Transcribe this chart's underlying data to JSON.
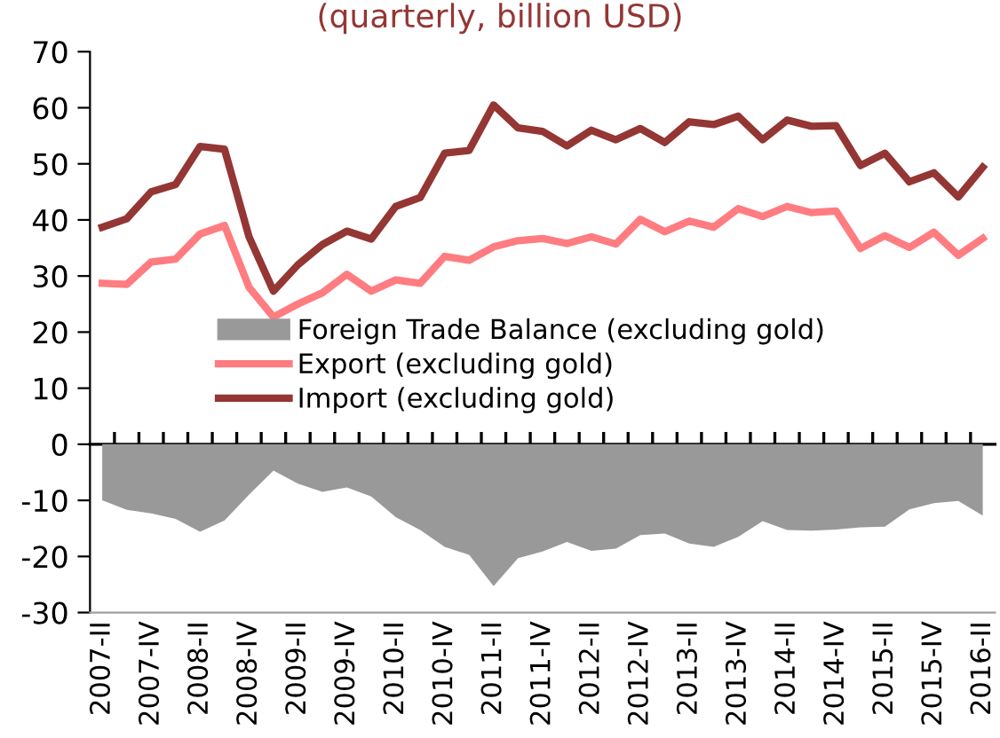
{
  "chart_data": {
    "type": "line",
    "title": "(quarterly, billion USD)",
    "categories": [
      "2007-II",
      null,
      "2007-IV",
      null,
      "2008-II",
      null,
      "2008-IV",
      null,
      "2009-II",
      null,
      "2009-IV",
      null,
      "2010-II",
      null,
      "2010-IV",
      null,
      "2011-II",
      null,
      "2011-IV",
      null,
      "2012-II",
      null,
      "2012-IV",
      null,
      "2013-II",
      null,
      "2013-IV",
      null,
      "2014-II",
      null,
      "2014-IV",
      null,
      "2015-II",
      null,
      "2015-IV",
      null,
      "2016-II"
    ],
    "series": [
      {
        "name": "Foreign Trade Balance (excluding gold)",
        "type": "area",
        "color": "#999999",
        "values": [
          -10,
          -11.7,
          -12.3,
          -13.3,
          -15.6,
          -13.6,
          -9,
          -4.7,
          -7,
          -8.5,
          -7.7,
          -9.3,
          -13,
          -15.3,
          -18.3,
          -19.7,
          -25.3,
          -20.3,
          -19.1,
          -17.4,
          -19,
          -18.6,
          -16.2,
          -15.9,
          -17.7,
          -18.3,
          -16.5,
          -13.7,
          -15.3,
          -15.4,
          -15.2,
          -14.8,
          -14.7,
          -11.6,
          -10.5,
          -10.1,
          -12.7
        ]
      },
      {
        "name": "Export (excluding gold)",
        "color": "#ff7c80",
        "values": [
          28.7,
          28.5,
          32.5,
          33,
          37.5,
          39,
          28,
          22.7,
          25,
          27,
          30.3,
          27.3,
          29.3,
          28.7,
          33.5,
          32.8,
          35.2,
          36.3,
          36.7,
          35.8,
          37,
          35.7,
          40.1,
          37.9,
          39.8,
          38.7,
          42,
          40.6,
          42.4,
          41.3,
          41.6,
          34.9,
          37.2,
          35.1,
          37.8,
          33.7,
          36.7
        ]
      },
      {
        "name": "Import (excluding gold)",
        "color": "#943634",
        "values": [
          38.7,
          40.2,
          45,
          46.3,
          53.1,
          52.6,
          37,
          27.3,
          32,
          35.6,
          38,
          36.6,
          42.4,
          44,
          51.9,
          52.4,
          60.5,
          56.4,
          55.8,
          53.2,
          56,
          54.3,
          56.3,
          53.8,
          57.5,
          57,
          58.5,
          54.3,
          57.8,
          56.7,
          56.8,
          49.7,
          51.9,
          46.8,
          48.4,
          44.1,
          49.4
        ]
      }
    ],
    "ylim": [
      -30,
      70
    ],
    "yticks": [
      -30,
      -20,
      -10,
      0,
      10,
      20,
      30,
      40,
      50,
      60,
      70
    ],
    "legend": "center left",
    "marker": "none",
    "line_style": "solid"
  }
}
